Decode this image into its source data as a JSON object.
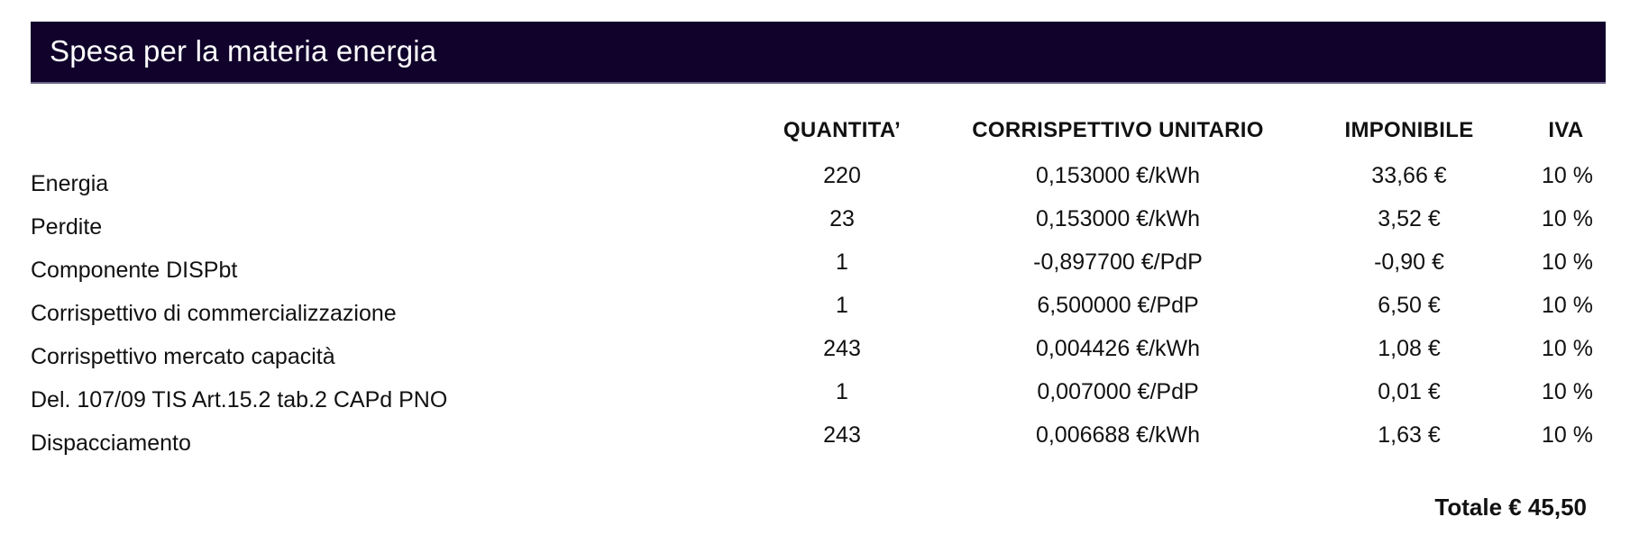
{
  "section": {
    "title": "Spesa per la materia energia",
    "header_color": "#10022b"
  },
  "columns": {
    "quantita": "QUANTITA’",
    "corrispettivo": "CORRISPETTIVO UNITARIO",
    "imponibile": "IMPONIBILE",
    "iva": "IVA"
  },
  "rows": [
    {
      "label": "Energia",
      "quantita": "220",
      "corrispettivo": "0,153000 €/kWh",
      "imponibile": "33,66 €",
      "iva": "10 %"
    },
    {
      "label": "Perdite",
      "quantita": "23",
      "corrispettivo": "0,153000 €/kWh",
      "imponibile": "3,52 €",
      "iva": "10 %"
    },
    {
      "label": "Componente DISPbt",
      "quantita": "1",
      "corrispettivo": "-0,897700 €/PdP",
      "imponibile": "-0,90 €",
      "iva": "10 %"
    },
    {
      "label": "Corrispettivo di commercializzazione",
      "quantita": "1",
      "corrispettivo": "6,500000 €/PdP",
      "imponibile": "6,50 €",
      "iva": "10 %"
    },
    {
      "label": "Corrispettivo mercato capacità",
      "quantita": "243",
      "corrispettivo": "0,004426 €/kWh",
      "imponibile": "1,08 €",
      "iva": "10 %"
    },
    {
      "label": "Del. 107/09 TIS Art.15.2 tab.2 CAPd PNO",
      "quantita": "1",
      "corrispettivo": "0,007000 €/PdP",
      "imponibile": "0,01 €",
      "iva": "10 %"
    },
    {
      "label": "Dispacciamento",
      "quantita": "243",
      "corrispettivo": "0,006688 €/kWh",
      "imponibile": "1,63 €",
      "iva": "10 %"
    }
  ],
  "total": "Totale € 45,50"
}
